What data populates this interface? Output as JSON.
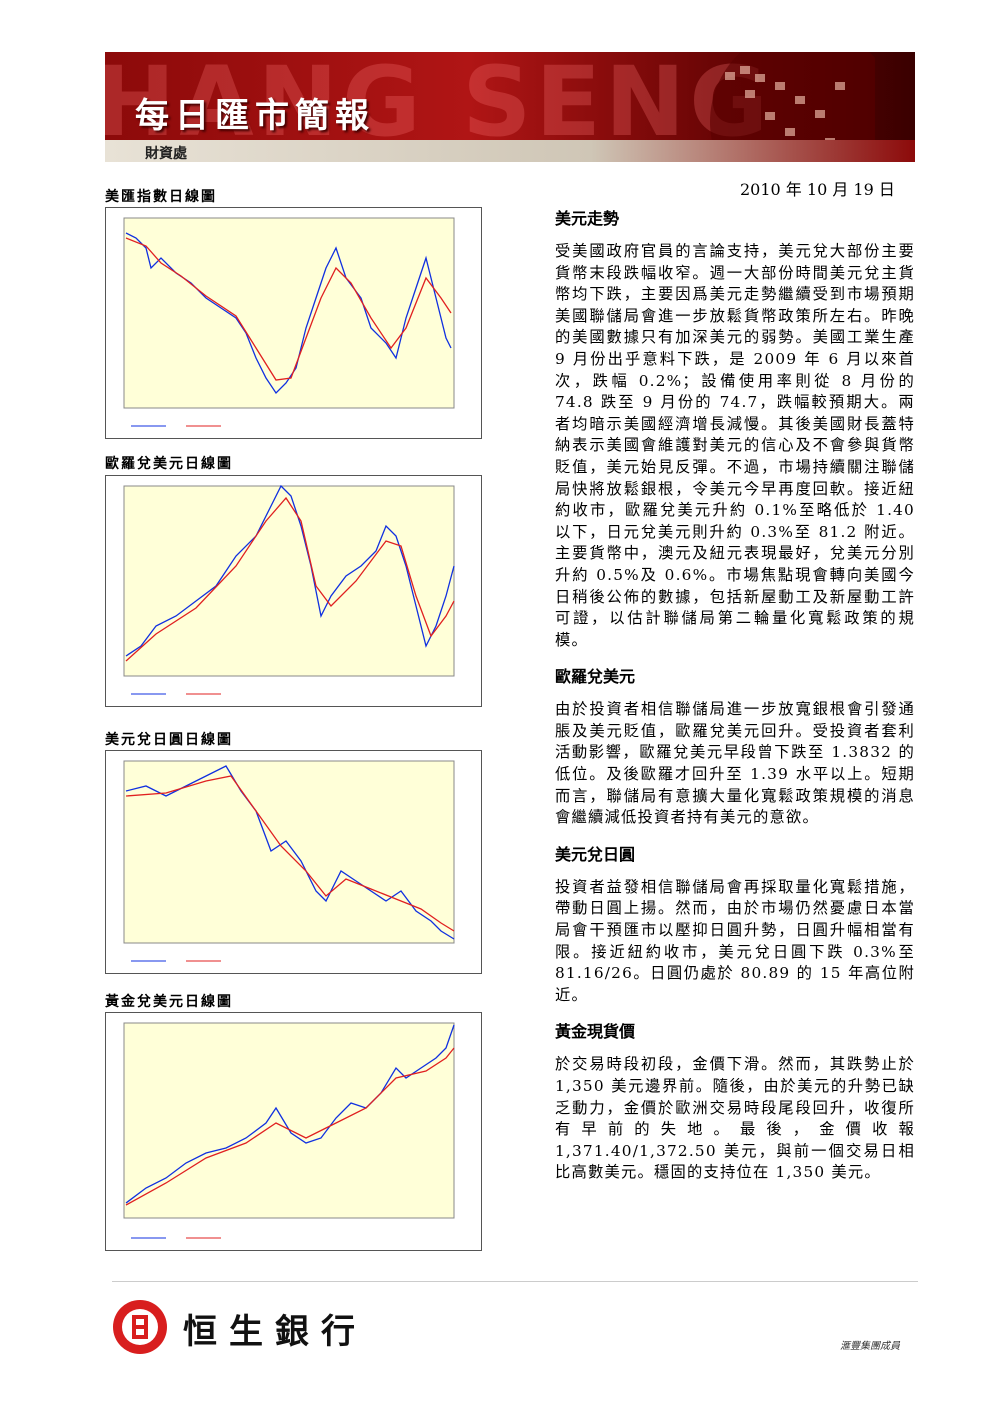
{
  "header": {
    "brand_watermark": "HANG SENG",
    "title": "每日匯市簡報",
    "department": "財資處",
    "date": "2010 年 10 月 19 日"
  },
  "charts": [
    {
      "title": "美匯指數日線圖"
    },
    {
      "title": "歐羅兌美元日線圖"
    },
    {
      "title": "美元兌日圓日線圖"
    },
    {
      "title": "黃金兌美元日線圖"
    }
  ],
  "sections": [
    {
      "heading": "美元走勢",
      "body": "受美國政府官員的言論支持，美元兌大部份主要貨幣末段跌幅收窄。週一大部份時間美元兌主貨幣均下跌，主要因爲美元走勢繼續受到市場預期美國聯儲局會進一步放鬆貨幣政策所左右。昨晚的美國數據只有加深美元的弱勢。美國工業生產 9 月份出乎意料下跌，是 2009 年 6 月以來首次，跌幅 0.2%；設備使用率則從 8 月份的 74.8 跌至 9 月份的 74.7，跌幅較預期大。兩者均暗示美國經濟增長減慢。其後美國財長蓋特納表示美國會維護對美元的信心及不會參與貨幣貶值，美元始見反彈。不過，市場持續關注聯儲局快將放鬆銀根，令美元今早再度回軟。接近紐約收市，歐羅兌美元升約 0.1%至略低於 1.40 以下，日元兌美元則升約 0.3%至 81.2 附近。主要貨幣中，澳元及紐元表現最好，兌美元分別升約 0.5%及 0.6%。市場焦點現會轉向美國今日稍後公佈的數據，包括新屋動工及新屋動工許可證，以估計聯儲局第二輪量化寬鬆政策的規模。"
    },
    {
      "heading": "歐羅兌美元",
      "body": "由於投資者相信聯儲局進一步放寬銀根會引發通脹及美元貶值，歐羅兌美元回升。受投資者套利活動影響，歐羅兌美元早段曾下跌至 1.3832 的低位。及後歐羅才回升至 1.39 水平以上。短期而言，聯儲局有意擴大量化寬鬆政策規模的消息會繼續減低投資者持有美元的意欲。"
    },
    {
      "heading": "美元兌日圓",
      "body": "投資者益發相信聯儲局會再採取量化寬鬆措施，帶動日圓上揚。然而，由於市場仍然憂慮日本當局會干預匯市以壓抑日圓升勢，日圓升幅相當有限。接近紐約收市，美元兌日圓下跌 0.3%至 81.16/26。日圓仍處於 80.89 的 15 年高位附近。"
    },
    {
      "heading": "黃金現貨價",
      "body": "於交易時段初段，金價下滑。然而，其跌勢止於 1,350 美元邊界前。隨後，由於美元的升勢已缺乏動力，金價於歐洲交易時段尾段回升，收復所有早前的失地。最後，金價收報 1,371.40/1,372.50 美元，與前一個交易日相比高數美元。穩固的支持位在 1,350 美元。"
    }
  ],
  "footer": {
    "bank_name": "恒生銀行",
    "group": "滙豐集團成員"
  }
}
